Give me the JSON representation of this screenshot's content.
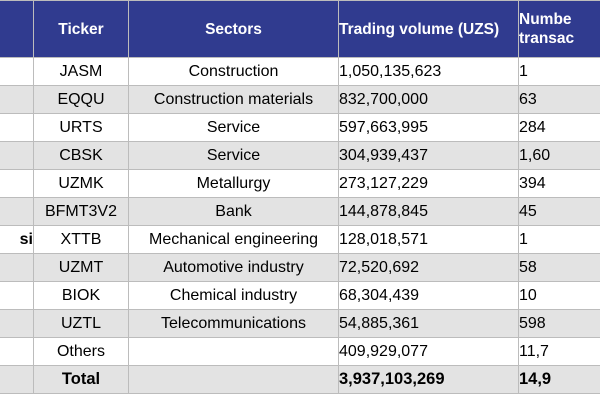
{
  "header": {
    "ticker": "Ticker",
    "sectors": "Sectors",
    "trading_volume": "Trading volume (UZS)",
    "number_line1": "Numbe",
    "number_line2": "transac"
  },
  "rows": [
    {
      "side": "",
      "ticker": "JASM",
      "sector": "Construction",
      "volume": "1,050,135,623",
      "number": "1"
    },
    {
      "side": "",
      "ticker": "EQQU",
      "sector": "Construction materials",
      "volume": "832,700,000",
      "number": "63"
    },
    {
      "side": "",
      "ticker": "URTS",
      "sector": "Service",
      "volume": "597,663,995",
      "number": "284"
    },
    {
      "side": "",
      "ticker": "CBSK",
      "sector": "Service",
      "volume": "304,939,437",
      "number": "1,60"
    },
    {
      "side": "",
      "ticker": "UZMK",
      "sector": "Metallurgy",
      "volume": "273,127,229",
      "number": "394"
    },
    {
      "side": "",
      "ticker": "BFMT3V2",
      "sector": "Bank",
      "volume": "144,878,845",
      "number": "45"
    },
    {
      "side": "si",
      "ticker": "XTTB",
      "sector": "Mechanical engineering",
      "volume": "128,018,571",
      "number": "1"
    },
    {
      "side": "",
      "ticker": "UZMT",
      "sector": "Automotive industry",
      "volume": "72,520,692",
      "number": "58"
    },
    {
      "side": "",
      "ticker": "BIOK",
      "sector": "Chemical industry",
      "volume": "68,304,439",
      "number": "10"
    },
    {
      "side": "",
      "ticker": "UZTL",
      "sector": "Telecommunications",
      "volume": "54,885,361",
      "number": "598"
    },
    {
      "side": "",
      "ticker": "Others",
      "sector": "",
      "volume": "409,929,077",
      "number": "11,7"
    }
  ],
  "total": {
    "label": "Total",
    "volume": "3,937,103,269",
    "number": "14,9"
  }
}
